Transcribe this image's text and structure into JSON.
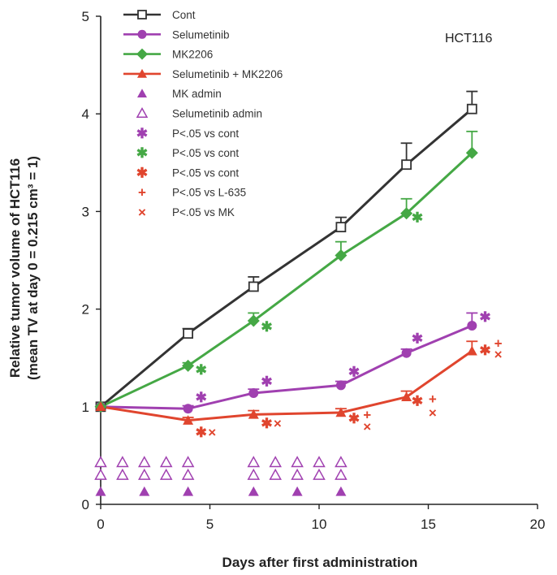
{
  "chart_data": {
    "type": "line",
    "panel_label": "HCT116",
    "xlabel": "Days after first administration",
    "ylabel_line1": "Relative tumor volume of HCT116",
    "ylabel_line2": "(mean TV at day 0 = 0.215 cm³ = 1)",
    "xlim": [
      0,
      20
    ],
    "ylim": [
      0,
      5
    ],
    "xticks": [
      0,
      5,
      10,
      15,
      20
    ],
    "yticks": [
      0,
      1,
      2,
      3,
      4,
      5
    ],
    "grid": false,
    "legend_position": "top-left",
    "x": [
      0,
      4,
      7,
      11,
      14,
      17
    ],
    "series": [
      {
        "name": "Cont",
        "marker": "open-square",
        "color": "#333333",
        "values": [
          1.0,
          1.75,
          2.23,
          2.84,
          3.48,
          4.05
        ],
        "err": [
          0,
          0.05,
          0.1,
          0.1,
          0.22,
          0.18
        ]
      },
      {
        "name": "Selumetinib",
        "marker": "circle",
        "color": "#a040b0",
        "values": [
          1.0,
          0.98,
          1.14,
          1.22,
          1.55,
          1.83
        ],
        "err": [
          0,
          0.03,
          0.04,
          0.04,
          0.04,
          0.13
        ]
      },
      {
        "name": "MK2206",
        "marker": "diamond",
        "color": "#45a845",
        "values": [
          1.0,
          1.42,
          1.88,
          2.55,
          2.98,
          3.6
        ],
        "err": [
          0,
          0.03,
          0.08,
          0.14,
          0.15,
          0.22
        ]
      },
      {
        "name": "Selumetinib + MK2206",
        "marker": "triangle",
        "color": "#e0452e",
        "values": [
          1.0,
          0.86,
          0.92,
          0.94,
          1.1,
          1.57
        ],
        "err": [
          0,
          0.03,
          0.04,
          0.04,
          0.06,
          0.1
        ]
      }
    ],
    "legend_extra": [
      {
        "label": "MK admin",
        "marker": "filled-triangle",
        "color": "#a040b0"
      },
      {
        "label": "Selumetinib admin",
        "marker": "open-triangle",
        "color": "#a040b0"
      },
      {
        "label": "P<.05 vs cont",
        "symbol": "✱",
        "color": "#a040b0"
      },
      {
        "label": "P<.05 vs cont",
        "symbol": "✱",
        "color": "#45a845"
      },
      {
        "label": "P<.05 vs cont",
        "symbol": "✱",
        "color": "#e0452e"
      },
      {
        "label": "P<.05 vs L-635",
        "symbol": "+",
        "color": "#e0452e"
      },
      {
        "label": "P<.05 vs MK",
        "symbol": "×",
        "color": "#e0452e"
      }
    ],
    "admin_marks": {
      "mk_admin_days": [
        0,
        2,
        4,
        7,
        9,
        11
      ],
      "selumetinib_admin_days": [
        0,
        1,
        2,
        3,
        4,
        7,
        8,
        9,
        10,
        11
      ]
    },
    "significance": [
      {
        "x": 4.6,
        "y": 1.38,
        "symbol": "✱",
        "color": "#45a845"
      },
      {
        "x": 7.6,
        "y": 1.82,
        "symbol": "✱",
        "color": "#45a845"
      },
      {
        "x": 14.5,
        "y": 2.94,
        "symbol": "✱",
        "color": "#45a845"
      },
      {
        "x": 4.6,
        "y": 1.1,
        "symbol": "✱",
        "color": "#a040b0"
      },
      {
        "x": 7.6,
        "y": 1.26,
        "symbol": "✱",
        "color": "#a040b0"
      },
      {
        "x": 11.6,
        "y": 1.36,
        "symbol": "✱",
        "color": "#a040b0"
      },
      {
        "x": 14.5,
        "y": 1.7,
        "symbol": "✱",
        "color": "#a040b0"
      },
      {
        "x": 17.6,
        "y": 1.92,
        "symbol": "✱",
        "color": "#a040b0"
      },
      {
        "x": 4.6,
        "y": 0.74,
        "symbol": "✱",
        "color": "#e0452e"
      },
      {
        "x": 7.6,
        "y": 0.83,
        "symbol": "✱",
        "color": "#e0452e"
      },
      {
        "x": 11.6,
        "y": 0.88,
        "symbol": "✱",
        "color": "#e0452e"
      },
      {
        "x": 14.5,
        "y": 1.06,
        "symbol": "✱",
        "color": "#e0452e"
      },
      {
        "x": 17.6,
        "y": 1.58,
        "symbol": "✱",
        "color": "#e0452e"
      },
      {
        "x": 12.2,
        "y": 0.92,
        "symbol": "+",
        "color": "#e0452e"
      },
      {
        "x": 15.2,
        "y": 1.08,
        "symbol": "+",
        "color": "#e0452e"
      },
      {
        "x": 18.2,
        "y": 1.65,
        "symbol": "+",
        "color": "#e0452e"
      },
      {
        "x": 5.1,
        "y": 0.74,
        "symbol": "×",
        "color": "#e0452e"
      },
      {
        "x": 8.1,
        "y": 0.83,
        "symbol": "×",
        "color": "#e0452e"
      },
      {
        "x": 12.2,
        "y": 0.8,
        "symbol": "×",
        "color": "#e0452e"
      },
      {
        "x": 15.2,
        "y": 0.94,
        "symbol": "×",
        "color": "#e0452e"
      },
      {
        "x": 18.2,
        "y": 1.54,
        "symbol": "×",
        "color": "#e0452e"
      }
    ]
  }
}
